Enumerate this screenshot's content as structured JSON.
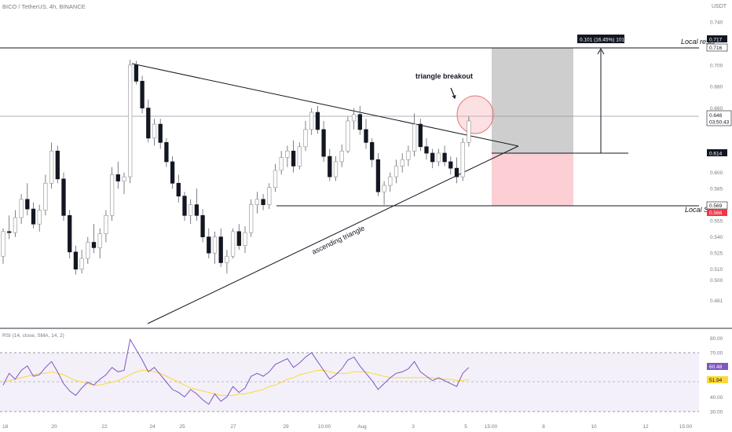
{
  "symbol_line": "BICO / TetherUS, 4h, BINANCE",
  "currency": "USDT",
  "annotations": {
    "breakout": "triangle breakout",
    "triangle": "ascending triangle",
    "resistance": "Local resis",
    "support": "Local Su",
    "measure": "0.101 (16.45%) 101"
  },
  "price_badges": {
    "target": "0.717",
    "resistance": "0.716",
    "last": "0.648",
    "countdown": "03:50:43",
    "entry": "0.614",
    "support": "0.569",
    "stop": "0.568"
  },
  "rsi": {
    "label": "RSI (14, close, SMA, 14, 2)",
    "value": "60.48",
    "sma": "51.94",
    "ticks": [
      "80.00",
      "70.00",
      "60.00",
      "50.00",
      "40.00",
      "30.00"
    ]
  },
  "chart_data": {
    "type": "candlestick",
    "price_axis": {
      "ticks": [
        "0.740",
        "0.720",
        "0.700",
        "0.680",
        "0.660",
        "0.640",
        "0.620",
        "0.600",
        "0.585",
        "0.570",
        "0.555",
        "0.540",
        "0.525",
        "0.510",
        "0.500",
        "0.481"
      ]
    },
    "time_axis": {
      "ticks": [
        "18",
        "20",
        "22",
        "24",
        "25",
        "27",
        "29",
        "10:00",
        "Aug",
        "3",
        "5",
        "15:00",
        "8",
        "10",
        "12",
        "15:00"
      ]
    },
    "candles": [
      [
        0.522,
        0.548,
        0.515,
        0.545
      ],
      [
        0.545,
        0.56,
        0.538,
        0.544
      ],
      [
        0.544,
        0.565,
        0.54,
        0.558
      ],
      [
        0.558,
        0.58,
        0.552,
        0.575
      ],
      [
        0.575,
        0.59,
        0.56,
        0.566
      ],
      [
        0.566,
        0.572,
        0.548,
        0.552
      ],
      [
        0.552,
        0.57,
        0.545,
        0.565
      ],
      [
        0.565,
        0.598,
        0.56,
        0.59
      ],
      [
        0.59,
        0.628,
        0.585,
        0.62
      ],
      [
        0.62,
        0.625,
        0.59,
        0.594
      ],
      [
        0.594,
        0.6,
        0.555,
        0.56
      ],
      [
        0.56,
        0.565,
        0.52,
        0.526
      ],
      [
        0.526,
        0.532,
        0.505,
        0.51
      ],
      [
        0.51,
        0.528,
        0.506,
        0.52
      ],
      [
        0.52,
        0.54,
        0.515,
        0.535
      ],
      [
        0.535,
        0.552,
        0.525,
        0.53
      ],
      [
        0.53,
        0.548,
        0.52,
        0.543
      ],
      [
        0.543,
        0.565,
        0.535,
        0.56
      ],
      [
        0.56,
        0.605,
        0.555,
        0.598
      ],
      [
        0.598,
        0.61,
        0.585,
        0.592
      ],
      [
        0.592,
        0.6,
        0.58,
        0.596
      ],
      [
        0.596,
        0.705,
        0.59,
        0.7
      ],
      [
        0.7,
        0.704,
        0.682,
        0.685
      ],
      [
        0.685,
        0.69,
        0.655,
        0.66
      ],
      [
        0.66,
        0.668,
        0.628,
        0.632
      ],
      [
        0.632,
        0.65,
        0.625,
        0.645
      ],
      [
        0.645,
        0.65,
        0.622,
        0.628
      ],
      [
        0.628,
        0.632,
        0.605,
        0.61
      ],
      [
        0.61,
        0.615,
        0.585,
        0.59
      ],
      [
        0.59,
        0.598,
        0.572,
        0.578
      ],
      [
        0.578,
        0.582,
        0.555,
        0.56
      ],
      [
        0.56,
        0.575,
        0.552,
        0.57
      ],
      [
        0.57,
        0.585,
        0.555,
        0.56
      ],
      [
        0.56,
        0.566,
        0.535,
        0.54
      ],
      [
        0.54,
        0.548,
        0.52,
        0.525
      ],
      [
        0.525,
        0.545,
        0.515,
        0.54
      ],
      [
        0.54,
        0.548,
        0.512,
        0.516
      ],
      [
        0.516,
        0.528,
        0.506,
        0.522
      ],
      [
        0.522,
        0.548,
        0.52,
        0.545
      ],
      [
        0.545,
        0.552,
        0.528,
        0.532
      ],
      [
        0.532,
        0.55,
        0.525,
        0.544
      ],
      [
        0.544,
        0.575,
        0.54,
        0.57
      ],
      [
        0.57,
        0.582,
        0.562,
        0.575
      ],
      [
        0.575,
        0.58,
        0.565,
        0.57
      ],
      [
        0.57,
        0.59,
        0.566,
        0.586
      ],
      [
        0.586,
        0.608,
        0.582,
        0.602
      ],
      [
        0.602,
        0.62,
        0.598,
        0.614
      ],
      [
        0.614,
        0.625,
        0.605,
        0.62
      ],
      [
        0.62,
        0.63,
        0.6,
        0.606
      ],
      [
        0.606,
        0.628,
        0.603,
        0.624
      ],
      [
        0.624,
        0.648,
        0.62,
        0.64
      ],
      [
        0.64,
        0.66,
        0.635,
        0.656
      ],
      [
        0.656,
        0.662,
        0.636,
        0.64
      ],
      [
        0.64,
        0.648,
        0.61,
        0.615
      ],
      [
        0.615,
        0.622,
        0.592,
        0.596
      ],
      [
        0.596,
        0.615,
        0.592,
        0.61
      ],
      [
        0.61,
        0.626,
        0.605,
        0.62
      ],
      [
        0.62,
        0.652,
        0.618,
        0.648
      ],
      [
        0.648,
        0.66,
        0.64,
        0.654
      ],
      [
        0.654,
        0.662,
        0.635,
        0.64
      ],
      [
        0.64,
        0.65,
        0.622,
        0.628
      ],
      [
        0.628,
        0.632,
        0.605,
        0.612
      ],
      [
        0.612,
        0.618,
        0.578,
        0.582
      ],
      [
        0.582,
        0.592,
        0.57,
        0.588
      ],
      [
        0.588,
        0.6,
        0.582,
        0.596
      ],
      [
        0.596,
        0.612,
        0.59,
        0.606
      ],
      [
        0.606,
        0.618,
        0.6,
        0.612
      ],
      [
        0.612,
        0.625,
        0.606,
        0.62
      ],
      [
        0.62,
        0.655,
        0.615,
        0.645
      ],
      [
        0.645,
        0.65,
        0.62,
        0.624
      ],
      [
        0.624,
        0.632,
        0.612,
        0.618
      ],
      [
        0.618,
        0.622,
        0.604,
        0.61
      ],
      [
        0.61,
        0.622,
        0.606,
        0.618
      ],
      [
        0.618,
        0.625,
        0.606,
        0.61
      ],
      [
        0.61,
        0.615,
        0.598,
        0.604
      ],
      [
        0.604,
        0.614,
        0.59,
        0.596
      ],
      [
        0.596,
        0.632,
        0.592,
        0.628
      ],
      [
        0.628,
        0.652,
        0.624,
        0.648
      ]
    ],
    "rsi_values": [
      48,
      56,
      52,
      58,
      61,
      54,
      55,
      60,
      64,
      57,
      49,
      44,
      41,
      46,
      50,
      48,
      52,
      55,
      60,
      57,
      58,
      79,
      72,
      65,
      57,
      60,
      55,
      50,
      45,
      43,
      40,
      45,
      42,
      38,
      35,
      42,
      37,
      40,
      47,
      43,
      46,
      54,
      56,
      54,
      57,
      62,
      64,
      66,
      60,
      63,
      67,
      70,
      64,
      58,
      52,
      55,
      59,
      65,
      67,
      61,
      56,
      51,
      45,
      49,
      53,
      56,
      57,
      59,
      64,
      57,
      54,
      51,
      53,
      51,
      49,
      47,
      56,
      60
    ],
    "rsi_sma_values": [
      50,
      51,
      52,
      53,
      54,
      55,
      56,
      56,
      57,
      56,
      55,
      53,
      51,
      50,
      49,
      48,
      48,
      49,
      50,
      51,
      53,
      55,
      57,
      58,
      58,
      57,
      56,
      54,
      52,
      50,
      48,
      46,
      45,
      44,
      43,
      42,
      41,
      41,
      41,
      42,
      42,
      43,
      44,
      45,
      47,
      48,
      50,
      52,
      53,
      55,
      56,
      57,
      58,
      58,
      57,
      56,
      56,
      56,
      57,
      57,
      57,
      56,
      55,
      54,
      53,
      53,
      53,
      53,
      53,
      53,
      53,
      53,
      52,
      52,
      52,
      51,
      51,
      52
    ]
  }
}
